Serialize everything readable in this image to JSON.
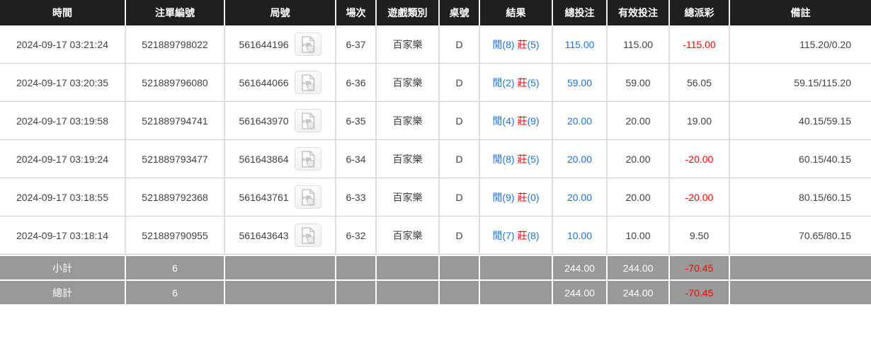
{
  "colors": {
    "header_bg": "#1f1f1f",
    "header_text": "#ffffff",
    "summary_bg": "#999999",
    "body_text": "#404040",
    "blue": "#1a73e8",
    "red": "#ff0000"
  },
  "icons": {
    "video_replay_icon": "document-with-video-camera"
  },
  "table": {
    "columns": [
      {
        "key": "time",
        "label": "時間"
      },
      {
        "key": "bet-id",
        "label": "注單編號"
      },
      {
        "key": "round-no",
        "label": "局號"
      },
      {
        "key": "session",
        "label": "場次"
      },
      {
        "key": "game-type",
        "label": "遊戲類別"
      },
      {
        "key": "table-no",
        "label": "桌號"
      },
      {
        "key": "result",
        "label": "結果"
      },
      {
        "key": "total-bet",
        "label": "總投注"
      },
      {
        "key": "valid-bet",
        "label": "有效投注"
      },
      {
        "key": "payout",
        "label": "總派彩"
      },
      {
        "key": "remark",
        "label": "備註"
      }
    ],
    "rows": [
      {
        "time": "2024-09-17 03:21:24",
        "bet_id": "521889798022",
        "round_no": "561644196",
        "session": "6-37",
        "game_type": "百家樂",
        "table_no": "D",
        "result": {
          "player": "閒",
          "player_score": "(8)",
          "banker": "莊",
          "banker_score": "(5)"
        },
        "total_bet": "115.00",
        "valid_bet": "115.00",
        "payout": "-115.00",
        "remark": "115.20/0.20"
      },
      {
        "time": "2024-09-17 03:20:35",
        "bet_id": "521889796080",
        "round_no": "561644066",
        "session": "6-36",
        "game_type": "百家樂",
        "table_no": "D",
        "result": {
          "player": "閒",
          "player_score": "(2)",
          "banker": "莊",
          "banker_score": "(5)"
        },
        "total_bet": "59.00",
        "valid_bet": "59.00",
        "payout": "56.05",
        "remark": "59.15/115.20"
      },
      {
        "time": "2024-09-17 03:19:58",
        "bet_id": "521889794741",
        "round_no": "561643970",
        "session": "6-35",
        "game_type": "百家樂",
        "table_no": "D",
        "result": {
          "player": "閒",
          "player_score": "(4)",
          "banker": "莊",
          "banker_score": "(9)"
        },
        "total_bet": "20.00",
        "valid_bet": "20.00",
        "payout": "19.00",
        "remark": "40.15/59.15"
      },
      {
        "time": "2024-09-17 03:19:24",
        "bet_id": "521889793477",
        "round_no": "561643864",
        "session": "6-34",
        "game_type": "百家樂",
        "table_no": "D",
        "result": {
          "player": "閒",
          "player_score": "(8)",
          "banker": "莊",
          "banker_score": "(5)"
        },
        "total_bet": "20.00",
        "valid_bet": "20.00",
        "payout": "-20.00",
        "remark": "60.15/40.15"
      },
      {
        "time": "2024-09-17 03:18:55",
        "bet_id": "521889792368",
        "round_no": "561643761",
        "session": "6-33",
        "game_type": "百家樂",
        "table_no": "D",
        "result": {
          "player": "閒",
          "player_score": "(9)",
          "banker": "莊",
          "banker_score": "(0)"
        },
        "total_bet": "20.00",
        "valid_bet": "20.00",
        "payout": "-20.00",
        "remark": "80.15/60.15"
      },
      {
        "time": "2024-09-17 03:18:14",
        "bet_id": "521889790955",
        "round_no": "561643643",
        "session": "6-32",
        "game_type": "百家樂",
        "table_no": "D",
        "result": {
          "player": "閒",
          "player_score": "(7)",
          "banker": "莊",
          "banker_score": "(8)"
        },
        "total_bet": "10.00",
        "valid_bet": "10.00",
        "payout": "9.50",
        "remark": "70.65/80.15"
      }
    ],
    "summary_rows": [
      {
        "key": "subtotal",
        "label": "小計",
        "count": "6",
        "total_bet": "244.00",
        "valid_bet": "244.00",
        "payout": "-70.45"
      },
      {
        "key": "grand-total",
        "label": "總計",
        "count": "6",
        "total_bet": "244.00",
        "valid_bet": "244.00",
        "payout": "-70.45"
      }
    ]
  }
}
